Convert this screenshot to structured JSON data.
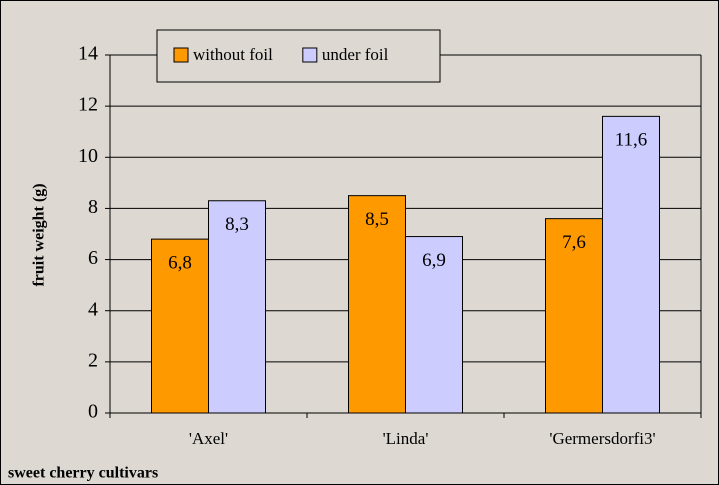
{
  "chart_data": {
    "type": "bar",
    "categories": [
      "'Axel'",
      "'Linda'",
      "'Germersdorfi3'"
    ],
    "series": [
      {
        "name": "without foil",
        "color": "#ff9900",
        "values": [
          6.8,
          8.5,
          7.6
        ],
        "value_labels": [
          "6,8",
          "8,5",
          "7,6"
        ]
      },
      {
        "name": "under foil",
        "color": "#ccccff",
        "values": [
          8.3,
          6.9,
          11.6
        ],
        "value_labels": [
          "8,3",
          "6,9",
          "11,6"
        ]
      }
    ],
    "ylim": [
      0,
      14
    ],
    "yticks": [
      0,
      2,
      4,
      6,
      8,
      10,
      12,
      14
    ],
    "grid": true,
    "y_label": "fruit weight (g)",
    "x_label": "sweet cherry cultivars",
    "legend": "top"
  }
}
